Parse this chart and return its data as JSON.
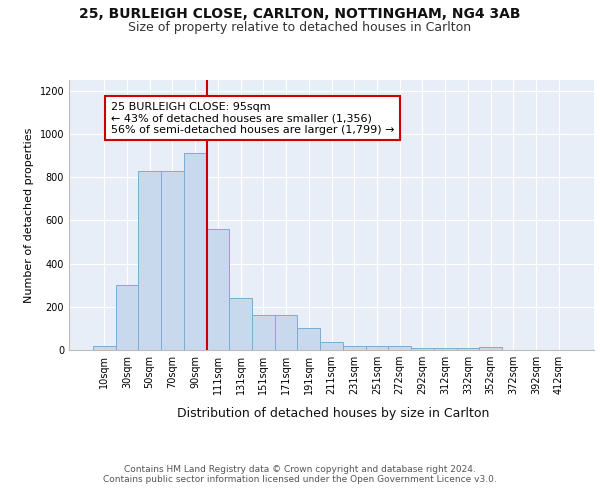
{
  "title1": "25, BURLEIGH CLOSE, CARLTON, NOTTINGHAM, NG4 3AB",
  "title2": "Size of property relative to detached houses in Carlton",
  "xlabel": "Distribution of detached houses by size in Carlton",
  "ylabel": "Number of detached properties",
  "bar_labels": [
    "10sqm",
    "30sqm",
    "50sqm",
    "70sqm",
    "90sqm",
    "111sqm",
    "131sqm",
    "151sqm",
    "171sqm",
    "191sqm",
    "211sqm",
    "231sqm",
    "251sqm",
    "272sqm",
    "292sqm",
    "312sqm",
    "332sqm",
    "352sqm",
    "372sqm",
    "392sqm",
    "412sqm"
  ],
  "bar_values": [
    20,
    300,
    830,
    830,
    910,
    560,
    240,
    160,
    160,
    100,
    35,
    20,
    20,
    18,
    10,
    10,
    10,
    12,
    0,
    0,
    0
  ],
  "bar_color": "#c9d9ed",
  "bar_edge_color": "#7aadd4",
  "vline_color": "#cc0000",
  "annotation_text": "25 BURLEIGH CLOSE: 95sqm\n← 43% of detached houses are smaller (1,356)\n56% of semi-detached houses are larger (1,799) →",
  "annotation_box_color": "#ffffff",
  "annotation_box_edgecolor": "#cc0000",
  "vline_bin_index": 4,
  "ylim": [
    0,
    1250
  ],
  "yticks": [
    0,
    200,
    400,
    600,
    800,
    1000,
    1200
  ],
  "background_color": "#e8eef7",
  "footer_text": "Contains HM Land Registry data © Crown copyright and database right 2024.\nContains public sector information licensed under the Open Government Licence v3.0.",
  "title1_fontsize": 10,
  "title2_fontsize": 9,
  "ylabel_fontsize": 8,
  "xlabel_fontsize": 9,
  "tick_fontsize": 7,
  "annotation_fontsize": 8,
  "footer_fontsize": 6.5
}
